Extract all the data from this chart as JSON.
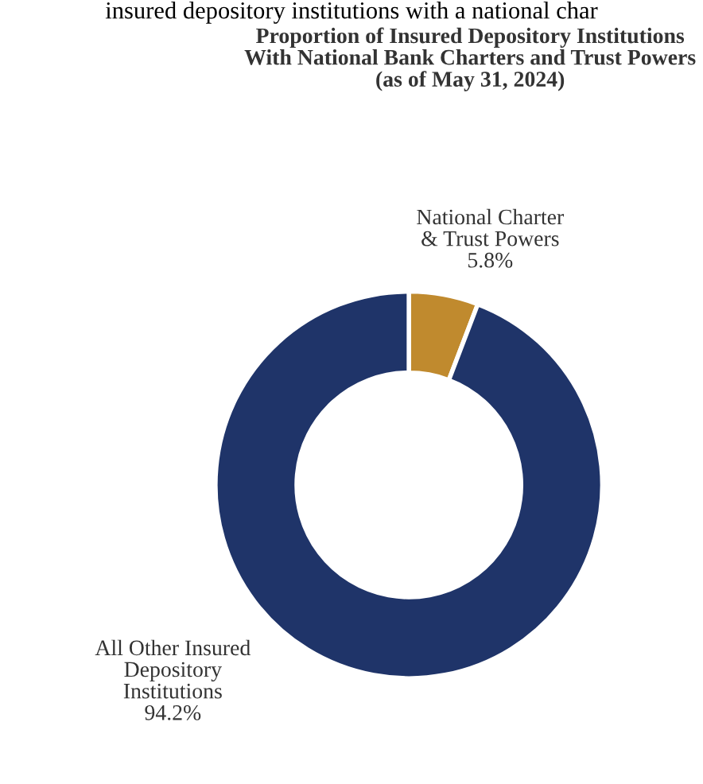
{
  "chart_data": {
    "type": "donut",
    "title": "Proportion of Insured Depository Institutions\nWith National Bank Charters and Trust Powers\n(as of May 31, 2024)",
    "annotations": [
      "insured depository institutions with a national char"
    ],
    "categories": [
      "National Charter\n& Trust Powers",
      "All Other Insured\nDepository\nInstitutions"
    ],
    "values": [
      5.8,
      94.2
    ],
    "colors": [
      "#c08a2e",
      "#1f3469"
    ],
    "value_labels": [
      "5.8%",
      "94.2%"
    ],
    "legend": false
  }
}
